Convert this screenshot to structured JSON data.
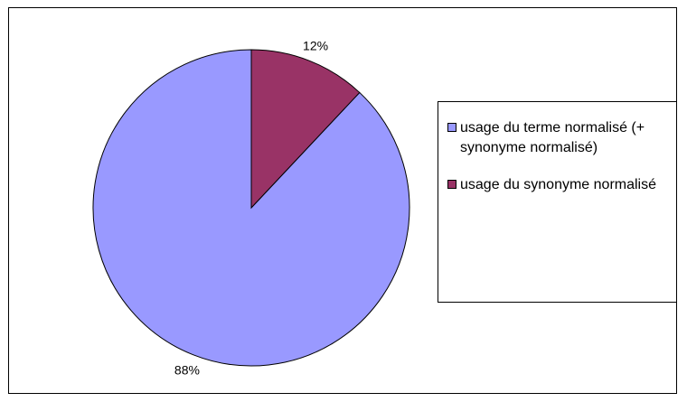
{
  "chart_data": {
    "type": "pie",
    "title": "",
    "start_angle_deg": 0,
    "direction": "counterclockwise",
    "slices": [
      {
        "label": "usage du terme normalisé (+ synonyme normalisé)",
        "value": 88,
        "display": "88%",
        "color": "#9999ff"
      },
      {
        "label": "usage du synonyme normalisé",
        "value": 12,
        "display": "12%",
        "color": "#993366"
      }
    ],
    "legend": {
      "position": "right"
    },
    "border_color": "#000000"
  }
}
